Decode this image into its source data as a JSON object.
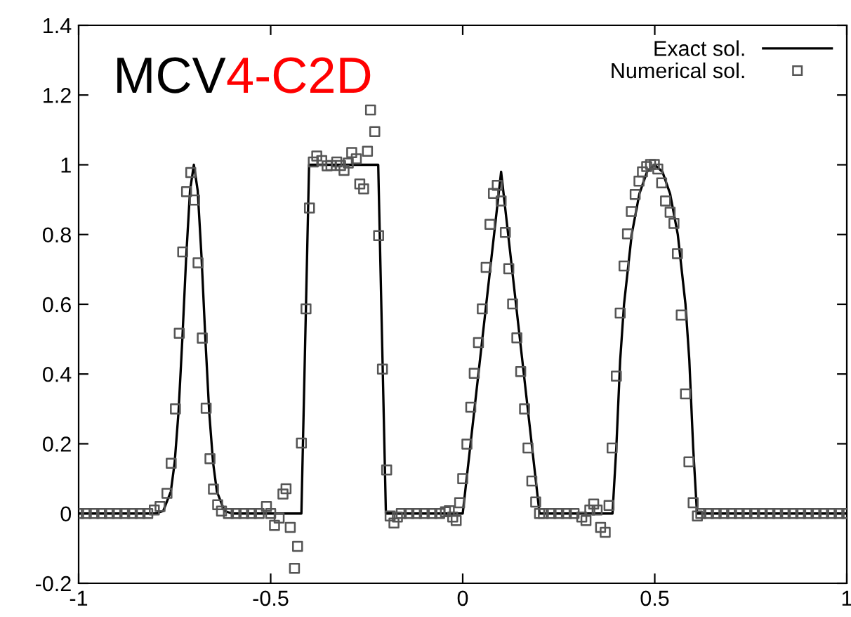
{
  "chart_data": {
    "type": "line",
    "title": "MCV4-C2D",
    "xlim": [
      -1,
      1
    ],
    "ylim": [
      -0.2,
      1.4
    ],
    "xticks": [
      -1,
      -0.5,
      0,
      0.5,
      1
    ],
    "yticks": [
      -0.2,
      0,
      0.2,
      0.4,
      0.6,
      0.8,
      1,
      1.2,
      1.4
    ],
    "grid": false,
    "legend": "top right",
    "series": [
      {
        "name": "Exact sol.",
        "color": "#000000",
        "marker": "none",
        "line_style": "solid",
        "x": [
          -1,
          -0.8,
          -0.78,
          -0.76,
          -0.75,
          -0.74,
          -0.73,
          -0.72,
          -0.71,
          -0.7,
          -0.69,
          -0.68,
          -0.67,
          -0.66,
          -0.65,
          -0.64,
          -0.62,
          -0.6,
          -0.42,
          -0.4,
          -0.22,
          -0.2,
          0.0,
          0.1,
          0.2,
          0.39,
          0.4,
          0.41,
          0.42,
          0.44,
          0.46,
          0.48,
          0.5,
          0.52,
          0.54,
          0.56,
          0.58,
          0.59,
          0.6,
          0.61,
          1
        ],
        "values": [
          0,
          0,
          0.007,
          0.063,
          0.146,
          0.29,
          0.5,
          0.735,
          0.926,
          1,
          0.926,
          0.735,
          0.5,
          0.29,
          0.146,
          0.063,
          0.007,
          0,
          0,
          1,
          1,
          0,
          0,
          0.98,
          0,
          0,
          0.19,
          0.44,
          0.6,
          0.8,
          0.917,
          0.98,
          1,
          0.98,
          0.917,
          0.8,
          0.6,
          0.44,
          0.19,
          0,
          0
        ]
      },
      {
        "name": "Numerical sol.",
        "type": "scatter",
        "color": "#555555",
        "marker": "square",
        "x": [
          -1,
          -0.98,
          -0.96,
          -0.94,
          -0.92,
          -0.9,
          -0.88,
          -0.86,
          -0.84,
          -0.82,
          -0.803,
          -0.788,
          -0.77,
          -0.759,
          -0.748,
          -0.738,
          -0.729,
          -0.719,
          -0.708,
          -0.698,
          -0.689,
          -0.678,
          -0.668,
          -0.658,
          -0.649,
          -0.638,
          -0.628,
          -0.61,
          -0.59,
          -0.57,
          -0.55,
          -0.53,
          -0.511,
          -0.5,
          -0.49,
          -0.478,
          -0.468,
          -0.46,
          -0.449,
          -0.438,
          -0.43,
          -0.42,
          -0.408,
          -0.399,
          -0.389,
          -0.38,
          -0.367,
          -0.353,
          -0.343,
          -0.328,
          -0.318,
          -0.309,
          -0.298,
          -0.289,
          -0.277,
          -0.268,
          -0.258,
          -0.248,
          -0.24,
          -0.229,
          -0.219,
          -0.209,
          -0.198,
          -0.189,
          -0.179,
          -0.17,
          -0.16,
          -0.14,
          -0.12,
          -0.1,
          -0.08,
          -0.06,
          -0.045,
          -0.035,
          -0.026,
          -0.017,
          -0.008,
          0.0,
          0.011,
          0.021,
          0.03,
          0.041,
          0.051,
          0.061,
          0.071,
          0.08,
          0.09,
          0.1,
          0.111,
          0.12,
          0.13,
          0.141,
          0.151,
          0.161,
          0.17,
          0.18,
          0.19,
          0.2,
          0.21,
          0.23,
          0.25,
          0.27,
          0.29,
          0.31,
          0.321,
          0.331,
          0.341,
          0.35,
          0.359,
          0.371,
          0.381,
          0.389,
          0.4,
          0.41,
          0.42,
          0.429,
          0.439,
          0.449,
          0.459,
          0.468,
          0.479,
          0.489,
          0.499,
          0.508,
          0.518,
          0.528,
          0.54,
          0.55,
          0.559,
          0.569,
          0.58,
          0.589,
          0.6,
          0.611,
          0.62,
          0.64,
          0.66,
          0.68,
          0.7,
          0.72,
          0.74,
          0.76,
          0.78,
          0.8,
          0.82,
          0.84,
          0.86,
          0.88,
          0.9,
          0.92,
          0.94,
          0.96,
          0.98,
          1.0
        ],
        "values": [
          0,
          0,
          0,
          0,
          0,
          0,
          0,
          0,
          0,
          0,
          0.01,
          0.02,
          0.058,
          0.144,
          0.3,
          0.517,
          0.75,
          0.923,
          0.978,
          0.899,
          0.719,
          0.503,
          0.302,
          0.157,
          0.07,
          0.025,
          0.007,
          0,
          0,
          0,
          0,
          0,
          0.02,
          0,
          -0.034,
          -0.013,
          0.056,
          0.071,
          -0.04,
          -0.157,
          -0.094,
          0.202,
          0.587,
          0.876,
          1.008,
          1.025,
          1.012,
          0.997,
          0.998,
          1.008,
          0.998,
          0.984,
          1.005,
          1.035,
          1.017,
          0.945,
          0.931,
          1.039,
          1.157,
          1.095,
          0.797,
          0.414,
          0.125,
          -0.007,
          -0.027,
          -0.01,
          0,
          0,
          0,
          0,
          0,
          0,
          0.005,
          0.008,
          -0.01,
          -0.02,
          0.031,
          0.1,
          0.199,
          0.305,
          0.402,
          0.49,
          0.587,
          0.706,
          0.829,
          0.918,
          0.941,
          0.896,
          0.806,
          0.702,
          0.601,
          0.504,
          0.407,
          0.3,
          0.188,
          0.093,
          0.033,
          0,
          0,
          0,
          0,
          0,
          0,
          -0.01,
          -0.02,
          0.01,
          0.027,
          0.01,
          -0.04,
          -0.054,
          0.023,
          0.188,
          0.394,
          0.575,
          0.71,
          0.802,
          0.866,
          0.915,
          0.953,
          0.98,
          0.995,
          1.001,
          1.001,
          0.988,
          0.948,
          0.896,
          0.864,
          0.832,
          0.745,
          0.569,
          0.343,
          0.148,
          0.031,
          -0.007,
          0,
          0,
          0,
          0,
          0,
          0,
          0,
          0,
          0,
          0,
          0,
          0,
          0,
          0,
          0,
          0,
          0,
          0,
          0,
          0
        ]
      }
    ]
  }
}
